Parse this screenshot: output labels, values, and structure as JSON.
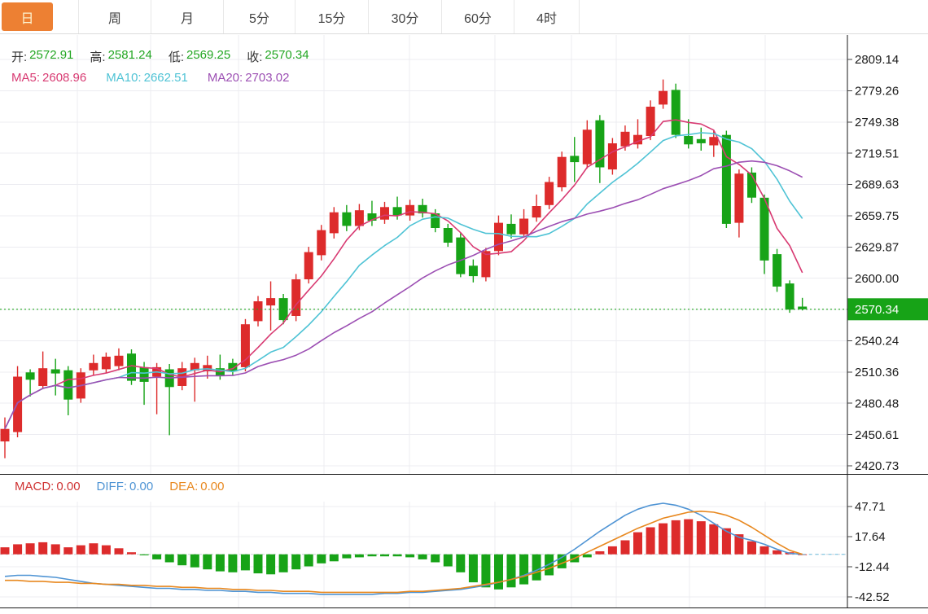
{
  "tabs": [
    {
      "label": "日",
      "active": true
    },
    {
      "label": "周",
      "active": false
    },
    {
      "label": "月",
      "active": false
    },
    {
      "label": "5分",
      "active": false
    },
    {
      "label": "15分",
      "active": false
    },
    {
      "label": "30分",
      "active": false
    },
    {
      "label": "60分",
      "active": false
    },
    {
      "label": "4时",
      "active": false
    }
  ],
  "legend": {
    "ohlc": [
      {
        "label": "开:",
        "value": "2572.91"
      },
      {
        "label": "高:",
        "value": "2581.24"
      },
      {
        "label": "低:",
        "value": "2569.25"
      },
      {
        "label": "收:",
        "value": "2570.34"
      }
    ],
    "ma": [
      {
        "label": "MA5:",
        "value": "2608.96"
      },
      {
        "label": "MA10:",
        "value": "2662.51"
      },
      {
        "label": "MA20:",
        "value": "2703.02"
      }
    ],
    "macd": [
      {
        "label": "MACD:",
        "value": "0.00"
      },
      {
        "label": "DIFF:",
        "value": "0.00"
      },
      {
        "label": "DEA:",
        "value": "0.00"
      }
    ]
  },
  "price_axis": {
    "ticks": [
      "2809.14",
      "2779.26",
      "2749.38",
      "2719.51",
      "2689.63",
      "2659.75",
      "2629.87",
      "2600.00",
      "2540.24",
      "2510.36",
      "2480.48",
      "2450.61",
      "2420.73"
    ],
    "current": "2570.34"
  },
  "macd_axis": {
    "ticks": [
      "47.71",
      "17.64",
      "-12.44",
      "-42.52"
    ]
  },
  "colors": {
    "up": "#dd2b2b",
    "down": "#17a317",
    "ohlc_value": "#22a622",
    "ma5": "#d83a72",
    "ma10": "#4fc3d5",
    "ma20": "#9c4fb3",
    "macd": "#cf3333",
    "diff": "#4f94d4",
    "dea": "#e8881f",
    "tab_active_bg": "#ed8033",
    "tab_active_text": "#fdf3d0",
    "grid": "#ececf1",
    "axis": "#1a1a1a",
    "price_line": "#22a622",
    "price_flag_bg": "#17a317",
    "price_flag_text": "#ffffff",
    "zero_dash": "#ccd1d9",
    "zero_dash_blue": "#8fcbe4"
  },
  "chart_data": {
    "type": "candlestick",
    "panels": [
      {
        "name": "price",
        "ylim": [
          2420.73,
          2809.14
        ],
        "ma_periods": [
          5,
          10,
          20
        ],
        "current_price": 2570.34,
        "ohlc": [
          [
            2444,
            2467,
            2428,
            2456
          ],
          [
            2453,
            2516,
            2448,
            2506
          ],
          [
            2510,
            2513,
            2487,
            2503
          ],
          [
            2497,
            2530,
            2494,
            2514
          ],
          [
            2513,
            2523,
            2488,
            2509
          ],
          [
            2512,
            2516,
            2469,
            2484
          ],
          [
            2485,
            2514,
            2481,
            2510
          ],
          [
            2512,
            2527,
            2507,
            2519
          ],
          [
            2513,
            2529,
            2509,
            2525
          ],
          [
            2516,
            2533,
            2512,
            2526
          ],
          [
            2528,
            2532,
            2498,
            2502
          ],
          [
            2515,
            2520,
            2479,
            2501
          ],
          [
            2506,
            2519,
            2470,
            2515
          ],
          [
            2513,
            2518,
            2450,
            2496
          ],
          [
            2497,
            2520,
            2493,
            2514
          ],
          [
            2512,
            2524,
            2482,
            2519
          ],
          [
            2511,
            2526,
            2504,
            2517
          ],
          [
            2514,
            2527,
            2503,
            2507
          ],
          [
            2519,
            2523,
            2507,
            2511
          ],
          [
            2515,
            2561,
            2511,
            2556
          ],
          [
            2559,
            2583,
            2554,
            2578
          ],
          [
            2574,
            2597,
            2550,
            2581
          ],
          [
            2581,
            2585,
            2556,
            2560
          ],
          [
            2564,
            2604,
            2559,
            2599
          ],
          [
            2599,
            2630,
            2595,
            2625
          ],
          [
            2622,
            2651,
            2617,
            2646
          ],
          [
            2643,
            2668,
            2638,
            2663
          ],
          [
            2663,
            2670,
            2645,
            2650
          ],
          [
            2650,
            2671,
            2646,
            2665
          ],
          [
            2662,
            2674,
            2650,
            2655
          ],
          [
            2656,
            2673,
            2652,
            2668
          ],
          [
            2668,
            2678,
            2656,
            2660
          ],
          [
            2660,
            2675,
            2655,
            2670
          ],
          [
            2670,
            2676,
            2658,
            2662
          ],
          [
            2662,
            2666,
            2644,
            2648
          ],
          [
            2648,
            2652,
            2630,
            2634
          ],
          [
            2639,
            2643,
            2601,
            2604
          ],
          [
            2612,
            2618,
            2596,
            2602
          ],
          [
            2601,
            2629,
            2597,
            2626
          ],
          [
            2626,
            2660,
            2622,
            2653
          ],
          [
            2652,
            2661,
            2638,
            2642
          ],
          [
            2642,
            2666,
            2639,
            2657
          ],
          [
            2658,
            2680,
            2654,
            2669
          ],
          [
            2670,
            2697,
            2666,
            2692
          ],
          [
            2687,
            2721,
            2683,
            2716
          ],
          [
            2717,
            2735,
            2692,
            2711
          ],
          [
            2709,
            2751,
            2705,
            2742
          ],
          [
            2751,
            2756,
            2691,
            2706
          ],
          [
            2704,
            2734,
            2699,
            2729
          ],
          [
            2726,
            2746,
            2722,
            2740
          ],
          [
            2728,
            2752,
            2724,
            2737
          ],
          [
            2736,
            2770,
            2732,
            2764
          ],
          [
            2766,
            2790,
            2762,
            2779
          ],
          [
            2780,
            2786,
            2734,
            2737
          ],
          [
            2736,
            2752,
            2724,
            2728
          ],
          [
            2733,
            2744,
            2722,
            2729
          ],
          [
            2727,
            2741,
            2716,
            2735
          ],
          [
            2737,
            2741,
            2648,
            2652
          ],
          [
            2653,
            2704,
            2639,
            2700
          ],
          [
            2701,
            2706,
            2672,
            2677
          ],
          [
            2677,
            2680,
            2604,
            2617
          ],
          [
            2623,
            2628,
            2587,
            2592
          ],
          [
            2595,
            2598,
            2567,
            2570
          ],
          [
            2572.91,
            2581.24,
            2569.25,
            2570.34
          ]
        ]
      },
      {
        "name": "macd",
        "ylim": [
          -52,
          60
        ],
        "bars": [
          7,
          10,
          11,
          12,
          10,
          7,
          9,
          11,
          9,
          6,
          2,
          -1,
          -5,
          -8,
          -11,
          -13,
          -15,
          -17,
          -18,
          -16,
          -19,
          -20,
          -18,
          -15,
          -12,
          -9,
          -7,
          -4,
          -3,
          -2,
          -2,
          -2,
          -3,
          -5,
          -8,
          -12,
          -18,
          -28,
          -33,
          -35,
          -33,
          -30,
          -26,
          -21,
          -14,
          -8,
          -3,
          3,
          8,
          14,
          22,
          27,
          31,
          34,
          35,
          33,
          30,
          26,
          20,
          13,
          8,
          4,
          2,
          0
        ],
        "diff": [
          -22,
          -21,
          -21,
          -22,
          -23,
          -25,
          -27,
          -29,
          -30,
          -31,
          -32,
          -33,
          -34,
          -34,
          -35,
          -35,
          -36,
          -36,
          -37,
          -37,
          -38,
          -38,
          -39,
          -39,
          -39,
          -40,
          -40,
          -40,
          -40,
          -40,
          -39,
          -39,
          -38,
          -38,
          -37,
          -36,
          -35,
          -33,
          -31,
          -28,
          -25,
          -21,
          -16,
          -10,
          -3,
          5,
          14,
          23,
          31,
          39,
          45,
          49,
          51,
          49,
          45,
          39,
          31,
          23,
          17,
          14,
          10,
          5,
          1,
          0
        ],
        "dea": [
          -26,
          -26,
          -27,
          -27,
          -28,
          -28,
          -29,
          -29,
          -30,
          -30,
          -31,
          -31,
          -32,
          -32,
          -33,
          -33,
          -34,
          -34,
          -35,
          -35,
          -36,
          -36,
          -37,
          -37,
          -37,
          -38,
          -38,
          -38,
          -38,
          -38,
          -38,
          -38,
          -37,
          -37,
          -36,
          -35,
          -34,
          -32,
          -30,
          -28,
          -25,
          -22,
          -18,
          -14,
          -9,
          -4,
          2,
          8,
          14,
          20,
          26,
          31,
          36,
          39,
          42,
          43,
          42,
          39,
          34,
          27,
          19,
          11,
          4,
          0
        ]
      }
    ]
  }
}
